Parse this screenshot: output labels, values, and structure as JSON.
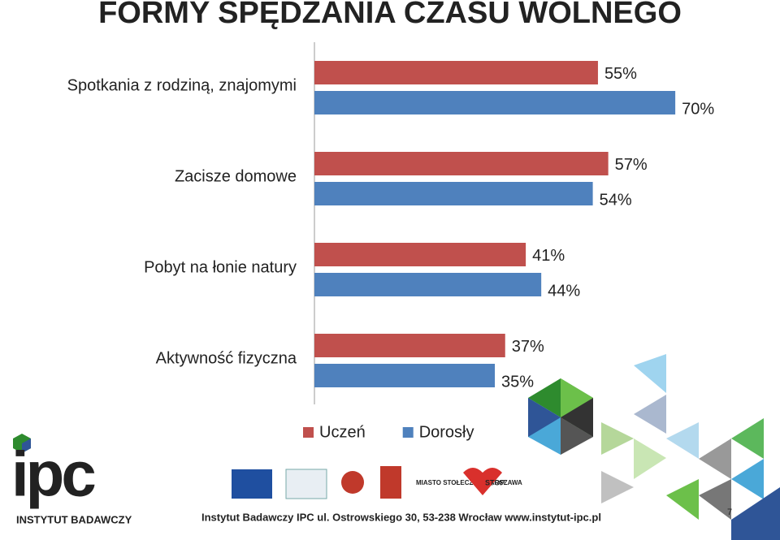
{
  "slide": {
    "title": "FORMY SPĘDZANIA CZASU WOLNEGO",
    "footer": "Instytut Badawczy IPC ul. Ostrowskiego 30, 53-238 Wrocław www.instytut-ipc.pl",
    "logo": "ipc",
    "logo_caption": "INSTYTUT BADAWCZY",
    "page_number": "7",
    "partner_logo": "MIASTO STOŁECZNE WARSZAWA",
    "stop_logo": "STOP"
  },
  "chart_data": {
    "type": "hbar",
    "categories": [
      "Spotkania z rodziną, znajomymi",
      "Zacisze domowe",
      "Pobyt na łonie natury",
      "Aktywność fizyczna"
    ],
    "series": [
      {
        "name": "Uczeń",
        "color": "#c0504d",
        "values": [
          55,
          57,
          41,
          37
        ],
        "value_labels": [
          "55%",
          "57%",
          "41%",
          "37%"
        ]
      },
      {
        "name": "Dorosły",
        "color": "#4f81bd",
        "values": [
          70,
          54,
          44,
          35
        ],
        "value_labels": [
          "70%",
          "54%",
          "44%",
          "35%"
        ]
      }
    ],
    "xlim": [
      0,
      90
    ],
    "legend": "bottom"
  }
}
